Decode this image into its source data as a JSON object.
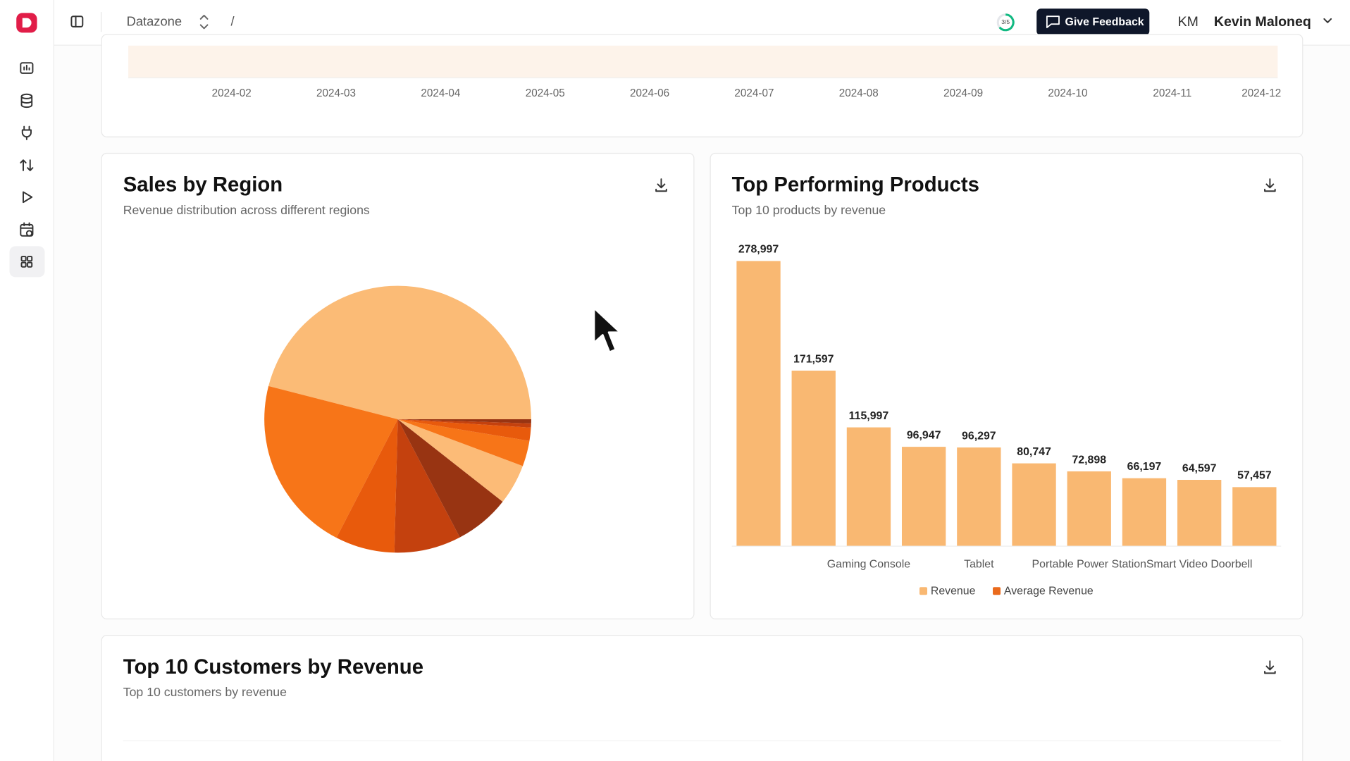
{
  "header": {
    "workspace": "Datazone",
    "separator": "/",
    "progress": "3/5",
    "feedback_button": "Give Feedback",
    "initials": "KM",
    "user_name": "Kevin Maloneq"
  },
  "revenue_trend": {
    "x_axis_labels": [
      "2024-02",
      "2024-03",
      "2024-04",
      "2024-05",
      "2024-06",
      "2024-07",
      "2024-08",
      "2024-09",
      "2024-10",
      "2024-11",
      "2024-12"
    ]
  },
  "chart_data": [
    {
      "type": "pie",
      "title": "Sales by Region",
      "subtitle": "Revenue distribution across different regions",
      "values": [
        46,
        21.4,
        7.2,
        8.1,
        6.7,
        4.9,
        3.1,
        1.6,
        0.5,
        0.5
      ],
      "colors": [
        "#fbbb76",
        "#f77518",
        "#e85a0c",
        "#c4410e",
        "#983412",
        "#fcbb77",
        "#f77518",
        "#e85a0c",
        "#c4410e",
        "#983412"
      ]
    },
    {
      "type": "bar",
      "title": "Top Performing Products",
      "subtitle": "Top 10 products by revenue",
      "categories": [
        null,
        null,
        "Gaming Console",
        null,
        "Tablet",
        null,
        "Portable Power Station",
        null,
        "Smart Video Doorbell",
        null
      ],
      "series": [
        {
          "name": "Revenue",
          "color": "#f9b872",
          "values": [
            278997,
            171597,
            115997,
            96947,
            96297,
            80747,
            72898,
            66197,
            64597,
            57457
          ],
          "value_labels": [
            "278,997",
            "171,597",
            "115,997",
            "96,947",
            "96,297",
            "80,747",
            "72,898",
            "66,197",
            "64,597",
            "57,457"
          ]
        },
        {
          "name": "Average Revenue",
          "color": "#ea6a1c",
          "values": [
            null,
            null,
            null,
            null,
            null,
            null,
            null,
            null,
            null,
            null
          ]
        }
      ],
      "ylim": [
        0,
        280000
      ],
      "legend": "bottom"
    }
  ],
  "customers_card": {
    "title": "Top 10 Customers by Revenue",
    "subtitle": "Top 10 customers by revenue"
  }
}
